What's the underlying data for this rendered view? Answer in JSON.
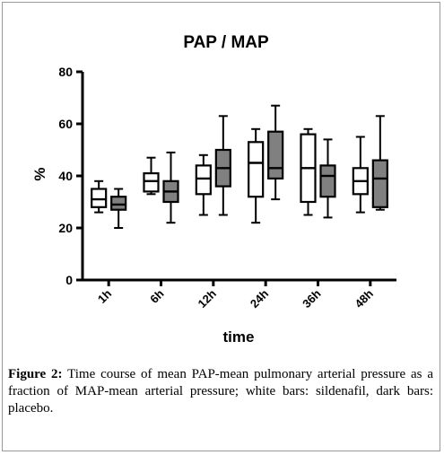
{
  "chart_data": {
    "type": "boxplot",
    "title": "PAP / MAP",
    "xlabel": "time",
    "ylabel": "%",
    "ylim": [
      0,
      80
    ],
    "yticks": [
      0,
      20,
      40,
      60,
      80
    ],
    "grid": false,
    "categories": [
      "1h",
      "6h",
      "12h",
      "24h",
      "36h",
      "48h"
    ],
    "series": [
      {
        "group": "sildenafil",
        "color": "#ffffff",
        "boxes": [
          {
            "min": 26,
            "q1": 28,
            "median": 31,
            "q3": 35,
            "max": 38
          },
          {
            "min": 33,
            "q1": 34,
            "median": 38,
            "q3": 41,
            "max": 47
          },
          {
            "min": 25,
            "q1": 33,
            "median": 39,
            "q3": 44,
            "max": 48
          },
          {
            "min": 22,
            "q1": 32,
            "median": 45,
            "q3": 53,
            "max": 58
          },
          {
            "min": 25,
            "q1": 30,
            "median": 43,
            "q3": 56,
            "max": 58
          },
          {
            "min": 26,
            "q1": 33,
            "median": 38,
            "q3": 43,
            "max": 55
          }
        ]
      },
      {
        "group": "placebo",
        "color": "#808080",
        "boxes": [
          {
            "min": 20,
            "q1": 27,
            "median": 29,
            "q3": 32,
            "max": 35
          },
          {
            "min": 22,
            "q1": 30,
            "median": 34,
            "q3": 38,
            "max": 49
          },
          {
            "min": 25,
            "q1": 36,
            "median": 43,
            "q3": 50,
            "max": 63
          },
          {
            "min": 31,
            "q1": 39,
            "median": 43,
            "q3": 57,
            "max": 67
          },
          {
            "min": 24,
            "q1": 32,
            "median": 40,
            "q3": 44,
            "max": 54
          },
          {
            "min": 27,
            "q1": 28,
            "median": 39,
            "q3": 46,
            "max": 63
          }
        ]
      }
    ]
  },
  "caption": {
    "label": "Figure 2:",
    "text": "Time course of mean PAP-mean pulmonary arterial pressure as a fraction of MAP-mean arterial pressure; white bars: sildenafil, dark bars: placebo."
  }
}
